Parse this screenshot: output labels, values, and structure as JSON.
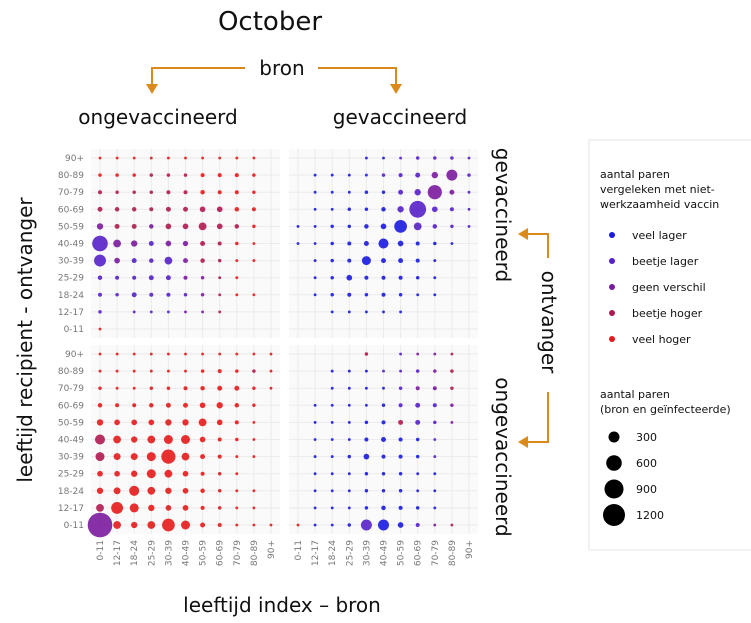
{
  "chart_data": {
    "type": "bubble_matrix",
    "title": "October",
    "source_label": "bron",
    "recipient_label": "ontvanger",
    "column_headers": [
      "ongevaccineerd",
      "gevaccineerd"
    ],
    "row_headers": [
      "gevaccineerd",
      "ongevaccineerd"
    ],
    "y_axis_label": "leeftijd recipient - ontvanger",
    "x_axis_label": "leeftijd index – bron",
    "ages": [
      "0-11",
      "12-17",
      "18-24",
      "25-29",
      "30-39",
      "40-49",
      "50-59",
      "60-69",
      "70-79",
      "80-89",
      "90+"
    ],
    "color_legend": {
      "title": [
        "aantal paren",
        "vergeleken met niet-",
        "werkzaamheid vaccin"
      ],
      "entries": [
        {
          "label": "veel lager",
          "color": "#1a1ae0"
        },
        {
          "label": "beetje lager",
          "color": "#5520c8"
        },
        {
          "label": "geen verschil",
          "color": "#7a1a9e"
        },
        {
          "label": "beetje hoger",
          "color": "#b01850"
        },
        {
          "label": "veel hoger",
          "color": "#e61a1a"
        }
      ]
    },
    "size_legend": {
      "title": [
        "aantal paren",
        "(bron en geïnfecteerde)"
      ],
      "values": [
        300,
        600,
        900,
        1200
      ]
    },
    "size_max": 1200,
    "panels": [
      {
        "sizes": [
          [
            20,
            null,
            null,
            null,
            null,
            null,
            null,
            null,
            null,
            null,
            null
          ],
          [
            30,
            null,
            20,
            20,
            20,
            20,
            20,
            20,
            null,
            null,
            null
          ],
          [
            40,
            30,
            60,
            40,
            40,
            30,
            30,
            20,
            20,
            20,
            null
          ],
          [
            50,
            40,
            40,
            60,
            60,
            40,
            30,
            20,
            20,
            null,
            null
          ],
          [
            350,
            80,
            60,
            50,
            150,
            60,
            50,
            30,
            20,
            20,
            null
          ],
          [
            600,
            150,
            100,
            60,
            80,
            70,
            60,
            40,
            30,
            20,
            null
          ],
          [
            100,
            60,
            60,
            50,
            80,
            80,
            150,
            80,
            50,
            30,
            null
          ],
          [
            60,
            50,
            50,
            40,
            60,
            60,
            80,
            80,
            50,
            40,
            null
          ],
          [
            40,
            30,
            30,
            30,
            40,
            40,
            50,
            40,
            40,
            30,
            null
          ],
          [
            30,
            30,
            30,
            30,
            30,
            30,
            40,
            40,
            40,
            30,
            null
          ],
          [
            20,
            20,
            20,
            20,
            20,
            20,
            20,
            20,
            20,
            20,
            null
          ]
        ],
        "classes": [
          [
            4,
            null,
            null,
            null,
            null,
            null,
            null,
            null,
            null,
            null,
            null
          ],
          [
            1,
            null,
            1,
            1,
            1,
            2,
            2,
            3,
            null,
            null,
            null
          ],
          [
            1,
            1,
            1,
            1,
            1,
            1,
            2,
            3,
            4,
            4,
            null
          ],
          [
            1,
            1,
            1,
            1,
            1,
            2,
            2,
            3,
            4,
            null,
            null
          ],
          [
            1,
            2,
            1,
            1,
            1,
            2,
            3,
            3,
            4,
            4,
            null
          ],
          [
            1,
            2,
            2,
            1,
            2,
            2,
            3,
            3,
            4,
            4,
            null
          ],
          [
            2,
            3,
            3,
            2,
            3,
            3,
            3,
            3,
            3,
            4,
            null
          ],
          [
            3,
            3,
            3,
            3,
            3,
            3,
            3,
            3,
            4,
            4,
            null
          ],
          [
            3,
            3,
            3,
            3,
            3,
            3,
            4,
            4,
            4,
            4,
            null
          ],
          [
            4,
            4,
            4,
            3,
            3,
            3,
            4,
            4,
            4,
            4,
            null
          ],
          [
            4,
            4,
            4,
            4,
            4,
            4,
            4,
            4,
            4,
            4,
            null
          ]
        ]
      },
      {
        "sizes": [
          [
            null,
            null,
            null,
            null,
            null,
            null,
            null,
            null,
            null,
            null,
            null
          ],
          [
            null,
            null,
            20,
            20,
            20,
            20,
            20,
            null,
            null,
            null,
            null
          ],
          [
            null,
            20,
            30,
            40,
            30,
            40,
            30,
            20,
            20,
            null,
            null
          ],
          [
            null,
            20,
            30,
            80,
            40,
            40,
            40,
            30,
            20,
            null,
            null
          ],
          [
            null,
            20,
            30,
            40,
            200,
            60,
            60,
            40,
            20,
            null,
            null
          ],
          [
            20,
            20,
            30,
            40,
            60,
            250,
            80,
            40,
            30,
            20,
            null
          ],
          [
            20,
            20,
            30,
            30,
            50,
            80,
            400,
            150,
            50,
            30,
            20
          ],
          [
            null,
            20,
            20,
            30,
            30,
            50,
            100,
            700,
            80,
            40,
            20
          ],
          [
            null,
            20,
            20,
            20,
            30,
            30,
            60,
            100,
            500,
            60,
            20
          ],
          [
            null,
            20,
            20,
            20,
            20,
            30,
            40,
            60,
            100,
            300,
            30
          ],
          [
            null,
            null,
            null,
            null,
            20,
            20,
            20,
            30,
            30,
            30,
            20
          ]
        ],
        "classes": [
          [
            null,
            null,
            null,
            null,
            null,
            null,
            null,
            null,
            null,
            null,
            null
          ],
          [
            null,
            null,
            0,
            0,
            0,
            0,
            0,
            null,
            null,
            null,
            null
          ],
          [
            null,
            0,
            0,
            0,
            0,
            0,
            0,
            0,
            0,
            null,
            null
          ],
          [
            null,
            0,
            0,
            0,
            0,
            0,
            0,
            0,
            0,
            null,
            null
          ],
          [
            null,
            0,
            0,
            0,
            0,
            0,
            0,
            0,
            0,
            null,
            null
          ],
          [
            0,
            0,
            0,
            0,
            0,
            0,
            0,
            0,
            0,
            0,
            null
          ],
          [
            0,
            0,
            0,
            0,
            0,
            0,
            0,
            1,
            1,
            1,
            1
          ],
          [
            null,
            0,
            0,
            0,
            0,
            0,
            1,
            1,
            1,
            1,
            1
          ],
          [
            null,
            0,
            0,
            0,
            0,
            0,
            1,
            1,
            2,
            2,
            1
          ],
          [
            null,
            0,
            0,
            0,
            0,
            1,
            1,
            1,
            2,
            2,
            1
          ],
          [
            null,
            null,
            null,
            null,
            0,
            0,
            1,
            1,
            1,
            1,
            1
          ]
        ]
      },
      {
        "sizes": [
          [
            1500,
            150,
            100,
            150,
            400,
            200,
            60,
            40,
            20,
            20,
            20
          ],
          [
            150,
            350,
            200,
            100,
            80,
            80,
            40,
            30,
            20,
            20,
            null
          ],
          [
            100,
            120,
            250,
            150,
            100,
            80,
            50,
            30,
            20,
            20,
            null
          ],
          [
            80,
            80,
            100,
            200,
            150,
            80,
            40,
            30,
            20,
            null,
            null
          ],
          [
            200,
            120,
            120,
            200,
            500,
            150,
            60,
            40,
            20,
            20,
            null
          ],
          [
            250,
            150,
            100,
            150,
            200,
            200,
            80,
            40,
            30,
            20,
            null
          ],
          [
            100,
            80,
            80,
            80,
            100,
            100,
            150,
            80,
            40,
            20,
            null
          ],
          [
            50,
            40,
            40,
            50,
            60,
            60,
            80,
            100,
            50,
            30,
            null
          ],
          [
            30,
            20,
            20,
            30,
            30,
            40,
            50,
            60,
            60,
            30,
            20
          ],
          [
            20,
            20,
            20,
            20,
            20,
            20,
            30,
            40,
            30,
            30,
            20
          ],
          [
            20,
            20,
            20,
            20,
            20,
            20,
            20,
            20,
            20,
            20,
            20
          ]
        ],
        "classes": [
          [
            2,
            4,
            4,
            4,
            4,
            4,
            4,
            4,
            4,
            4,
            4
          ],
          [
            3,
            4,
            4,
            4,
            4,
            4,
            4,
            4,
            4,
            4,
            null
          ],
          [
            4,
            4,
            4,
            4,
            4,
            4,
            4,
            4,
            4,
            4,
            null
          ],
          [
            4,
            4,
            4,
            4,
            4,
            4,
            4,
            4,
            4,
            null,
            null
          ],
          [
            3,
            4,
            4,
            4,
            4,
            4,
            4,
            4,
            4,
            4,
            null
          ],
          [
            3,
            4,
            4,
            4,
            4,
            4,
            4,
            4,
            4,
            4,
            null
          ],
          [
            4,
            4,
            4,
            4,
            4,
            4,
            4,
            4,
            4,
            4,
            null
          ],
          [
            4,
            4,
            4,
            4,
            4,
            4,
            4,
            4,
            4,
            4,
            null
          ],
          [
            4,
            4,
            4,
            4,
            4,
            4,
            4,
            4,
            4,
            4,
            4
          ],
          [
            4,
            4,
            4,
            4,
            4,
            4,
            4,
            4,
            4,
            3,
            4
          ],
          [
            4,
            4,
            4,
            4,
            4,
            4,
            4,
            4,
            4,
            4,
            4
          ]
        ]
      },
      {
        "sizes": [
          [
            20,
            20,
            20,
            30,
            300,
            300,
            80,
            40,
            20,
            20,
            null
          ],
          [
            null,
            20,
            20,
            20,
            30,
            50,
            40,
            30,
            20,
            null,
            null
          ],
          [
            null,
            20,
            20,
            20,
            30,
            30,
            30,
            20,
            20,
            null,
            null
          ],
          [
            null,
            20,
            20,
            20,
            30,
            30,
            30,
            20,
            20,
            null,
            null
          ],
          [
            null,
            20,
            20,
            30,
            80,
            40,
            40,
            30,
            20,
            null,
            null
          ],
          [
            null,
            20,
            20,
            20,
            40,
            60,
            40,
            30,
            20,
            null,
            null
          ],
          [
            null,
            20,
            20,
            20,
            30,
            40,
            60,
            60,
            30,
            20,
            null
          ],
          [
            null,
            20,
            20,
            20,
            20,
            30,
            40,
            60,
            40,
            30,
            null
          ],
          [
            null,
            null,
            20,
            20,
            20,
            20,
            30,
            40,
            40,
            30,
            null
          ],
          [
            null,
            null,
            20,
            20,
            20,
            20,
            20,
            30,
            30,
            30,
            null
          ],
          [
            null,
            null,
            null,
            null,
            30,
            null,
            20,
            20,
            20,
            20,
            null
          ]
        ],
        "classes": [
          [
            4,
            0,
            0,
            0,
            1,
            0,
            0,
            1,
            2,
            3,
            null
          ],
          [
            null,
            0,
            0,
            0,
            0,
            0,
            0,
            0,
            0,
            null,
            null
          ],
          [
            null,
            0,
            0,
            0,
            0,
            0,
            0,
            0,
            0,
            null,
            null
          ],
          [
            null,
            0,
            0,
            0,
            0,
            0,
            0,
            0,
            0,
            null,
            null
          ],
          [
            null,
            0,
            0,
            0,
            0,
            0,
            0,
            0,
            1,
            null,
            null
          ],
          [
            null,
            0,
            0,
            0,
            0,
            0,
            0,
            0,
            1,
            null,
            null
          ],
          [
            null,
            0,
            0,
            0,
            0,
            0,
            3,
            1,
            1,
            2,
            null
          ],
          [
            null,
            0,
            0,
            0,
            0,
            0,
            1,
            1,
            1,
            2,
            null
          ],
          [
            null,
            null,
            0,
            0,
            0,
            0,
            1,
            2,
            2,
            3,
            null
          ],
          [
            null,
            null,
            0,
            0,
            0,
            1,
            1,
            1,
            2,
            3,
            null
          ],
          [
            null,
            null,
            null,
            null,
            3,
            null,
            1,
            2,
            2,
            3,
            null
          ]
        ]
      }
    ]
  }
}
